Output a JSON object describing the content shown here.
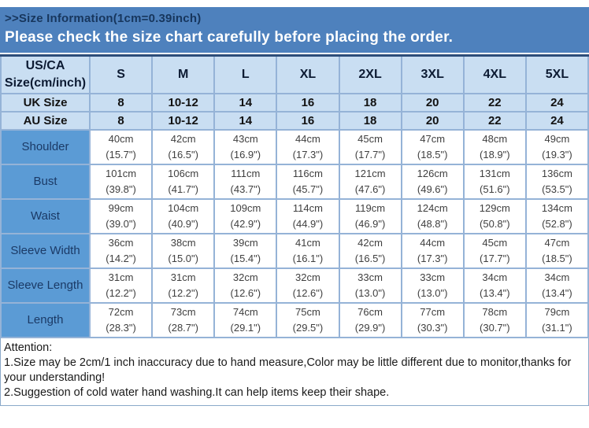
{
  "header": {
    "title": ">>Size Information(1cm=0.39inch)",
    "subtitle": "Please check the size chart carefully before placing the order."
  },
  "table": {
    "corner_label": "US/CA\nSize(cm/inch)",
    "size_columns": [
      "S",
      "M",
      "L",
      "XL",
      "2XL",
      "3XL",
      "4XL",
      "5XL"
    ],
    "uk_row": {
      "label": "UK Size",
      "values": [
        "8",
        "10-12",
        "14",
        "16",
        "18",
        "20",
        "22",
        "24"
      ]
    },
    "au_row": {
      "label": "AU Size",
      "values": [
        "8",
        "10-12",
        "14",
        "16",
        "18",
        "20",
        "22",
        "24"
      ]
    },
    "measurement_rows": [
      {
        "label": "Shoulder",
        "values": [
          "40cm\n(15.7\")",
          "42cm\n(16.5\")",
          "43cm\n(16.9\")",
          "44cm\n(17.3\")",
          "45cm\n(17.7\")",
          "47cm\n(18.5\")",
          "48cm\n(18.9\")",
          "49cm\n(19.3\")"
        ]
      },
      {
        "label": "Bust",
        "values": [
          "101cm\n(39.8\")",
          "106cm\n(41.7\")",
          "111cm\n(43.7\")",
          "116cm\n(45.7\")",
          "121cm\n(47.6\")",
          "126cm\n(49.6\")",
          "131cm\n(51.6\")",
          "136cm\n(53.5\")"
        ]
      },
      {
        "label": "Waist",
        "values": [
          "99cm\n(39.0\")",
          "104cm\n(40.9\")",
          "109cm\n(42.9\")",
          "114cm\n(44.9\")",
          "119cm\n(46.9\")",
          "124cm\n(48.8\")",
          "129cm\n(50.8\")",
          "134cm\n(52.8\")"
        ]
      },
      {
        "label": "Sleeve Width",
        "values": [
          "36cm\n(14.2\")",
          "38cm\n(15.0\")",
          "39cm\n(15.4\")",
          "41cm\n(16.1\")",
          "42cm\n(16.5\")",
          "44cm\n(17.3\")",
          "45cm\n(17.7\")",
          "47cm\n(18.5\")"
        ]
      },
      {
        "label": "Sleeve Length",
        "values": [
          "31cm\n(12.2\")",
          "31cm\n(12.2\")",
          "32cm\n(12.6\")",
          "32cm\n(12.6\")",
          "33cm\n(13.0\")",
          "33cm\n(13.0\")",
          "34cm\n(13.4\")",
          "34cm\n(13.4\")"
        ]
      },
      {
        "label": "Length",
        "values": [
          "72cm\n(28.3\")",
          "73cm\n(28.7\")",
          "74cm\n(29.1\")",
          "75cm\n(29.5\")",
          "76cm\n(29.9\")",
          "77cm\n(30.3\")",
          "78cm\n(30.7\")",
          "79cm\n(31.1\")"
        ]
      }
    ]
  },
  "notes": {
    "attention_label": "Attention:",
    "lines": [
      "1.Size may be 2cm/1 inch inaccuracy due to hand measure,Color may be little different due to monitor,thanks for your understanding!",
      "2.Suggestion of cold water hand washing.It can help items keep their shape."
    ]
  },
  "colors": {
    "banner_blue": "#4e81bd",
    "row_light_blue": "#c9def2",
    "label_blue": "#5b9bd5",
    "border_blue": "#95b3d7",
    "title_navy": "#17365d"
  }
}
